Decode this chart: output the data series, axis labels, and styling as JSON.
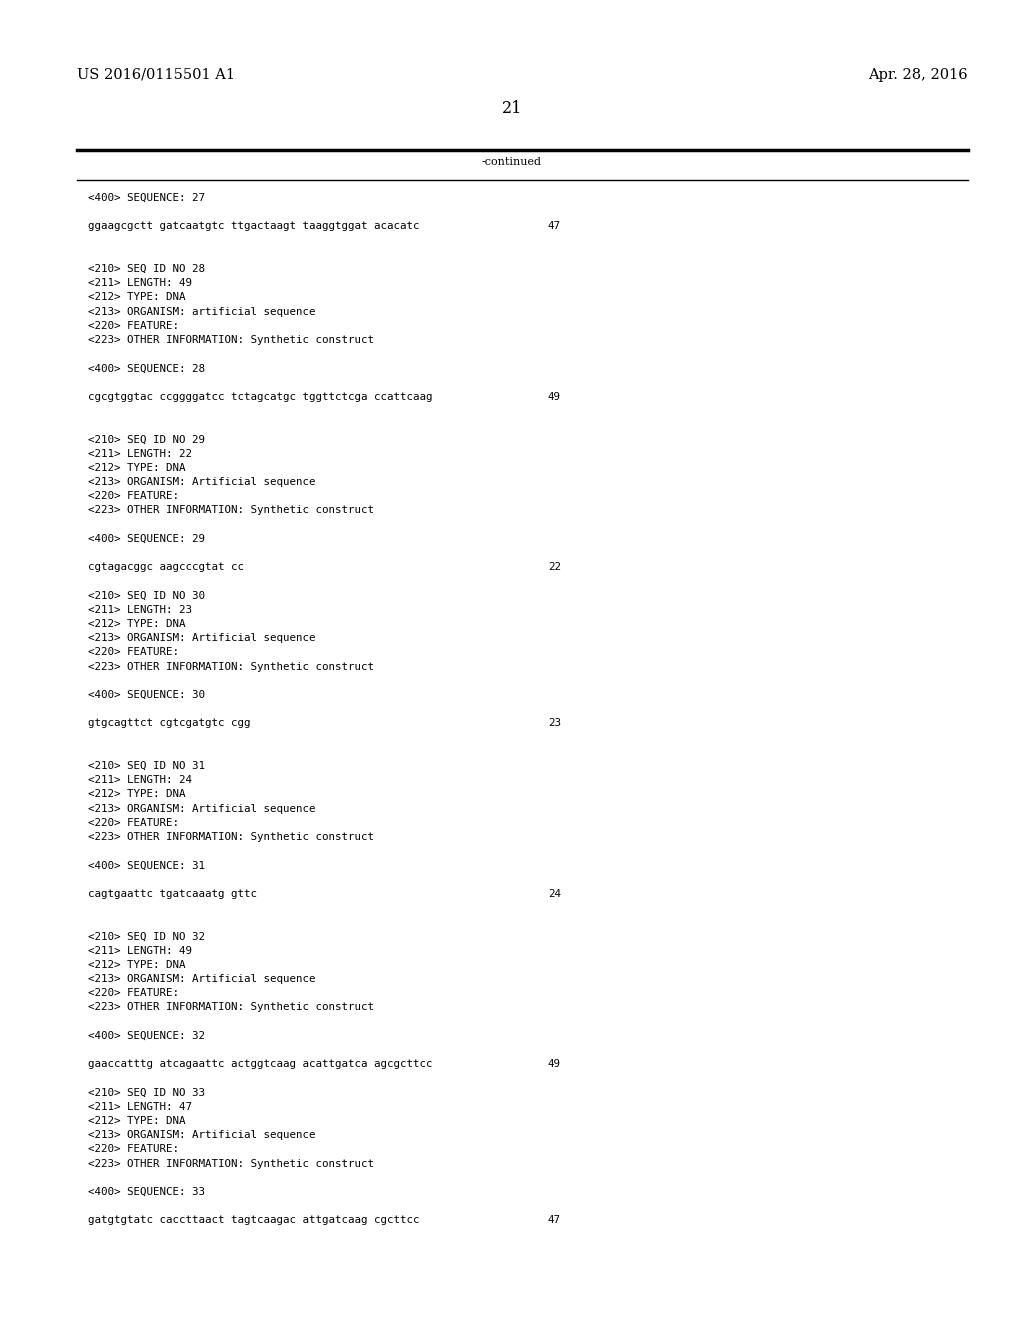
{
  "patent_number": "US 2016/0115501 A1",
  "date": "Apr. 28, 2016",
  "page_number": "21",
  "continued_label": "-continued",
  "background_color": "#ffffff",
  "text_color": "#000000",
  "header_font_size": 10.5,
  "body_font_size": 8.0,
  "mono_font_size": 7.8,
  "content_lines": [
    {
      "text": "<400> SEQUENCE: 27",
      "seq_num": null
    },
    {
      "text": "",
      "seq_num": null
    },
    {
      "text": "ggaagcgctt gatcaatgtc ttgactaagt taaggtggat acacatc",
      "seq_num": "47"
    },
    {
      "text": "",
      "seq_num": null
    },
    {
      "text": "",
      "seq_num": null
    },
    {
      "text": "<210> SEQ ID NO 28",
      "seq_num": null
    },
    {
      "text": "<211> LENGTH: 49",
      "seq_num": null
    },
    {
      "text": "<212> TYPE: DNA",
      "seq_num": null
    },
    {
      "text": "<213> ORGANISM: artificial sequence",
      "seq_num": null
    },
    {
      "text": "<220> FEATURE:",
      "seq_num": null
    },
    {
      "text": "<223> OTHER INFORMATION: Synthetic construct",
      "seq_num": null
    },
    {
      "text": "",
      "seq_num": null
    },
    {
      "text": "<400> SEQUENCE: 28",
      "seq_num": null
    },
    {
      "text": "",
      "seq_num": null
    },
    {
      "text": "cgcgtggtac ccggggatcc tctagcatgc tggttctcga ccattcaag",
      "seq_num": "49"
    },
    {
      "text": "",
      "seq_num": null
    },
    {
      "text": "",
      "seq_num": null
    },
    {
      "text": "<210> SEQ ID NO 29",
      "seq_num": null
    },
    {
      "text": "<211> LENGTH: 22",
      "seq_num": null
    },
    {
      "text": "<212> TYPE: DNA",
      "seq_num": null
    },
    {
      "text": "<213> ORGANISM: Artificial sequence",
      "seq_num": null
    },
    {
      "text": "<220> FEATURE:",
      "seq_num": null
    },
    {
      "text": "<223> OTHER INFORMATION: Synthetic construct",
      "seq_num": null
    },
    {
      "text": "",
      "seq_num": null
    },
    {
      "text": "<400> SEQUENCE: 29",
      "seq_num": null
    },
    {
      "text": "",
      "seq_num": null
    },
    {
      "text": "cgtagacggc aagcccgtat cc",
      "seq_num": "22"
    },
    {
      "text": "",
      "seq_num": null
    },
    {
      "text": "<210> SEQ ID NO 30",
      "seq_num": null
    },
    {
      "text": "<211> LENGTH: 23",
      "seq_num": null
    },
    {
      "text": "<212> TYPE: DNA",
      "seq_num": null
    },
    {
      "text": "<213> ORGANISM: Artificial sequence",
      "seq_num": null
    },
    {
      "text": "<220> FEATURE:",
      "seq_num": null
    },
    {
      "text": "<223> OTHER INFORMATION: Synthetic construct",
      "seq_num": null
    },
    {
      "text": "",
      "seq_num": null
    },
    {
      "text": "<400> SEQUENCE: 30",
      "seq_num": null
    },
    {
      "text": "",
      "seq_num": null
    },
    {
      "text": "gtgcagttct cgtcgatgtc cgg",
      "seq_num": "23"
    },
    {
      "text": "",
      "seq_num": null
    },
    {
      "text": "",
      "seq_num": null
    },
    {
      "text": "<210> SEQ ID NO 31",
      "seq_num": null
    },
    {
      "text": "<211> LENGTH: 24",
      "seq_num": null
    },
    {
      "text": "<212> TYPE: DNA",
      "seq_num": null
    },
    {
      "text": "<213> ORGANISM: Artificial sequence",
      "seq_num": null
    },
    {
      "text": "<220> FEATURE:",
      "seq_num": null
    },
    {
      "text": "<223> OTHER INFORMATION: Synthetic construct",
      "seq_num": null
    },
    {
      "text": "",
      "seq_num": null
    },
    {
      "text": "<400> SEQUENCE: 31",
      "seq_num": null
    },
    {
      "text": "",
      "seq_num": null
    },
    {
      "text": "cagtgaattc tgatcaaatg gttc",
      "seq_num": "24"
    },
    {
      "text": "",
      "seq_num": null
    },
    {
      "text": "",
      "seq_num": null
    },
    {
      "text": "<210> SEQ ID NO 32",
      "seq_num": null
    },
    {
      "text": "<211> LENGTH: 49",
      "seq_num": null
    },
    {
      "text": "<212> TYPE: DNA",
      "seq_num": null
    },
    {
      "text": "<213> ORGANISM: Artificial sequence",
      "seq_num": null
    },
    {
      "text": "<220> FEATURE:",
      "seq_num": null
    },
    {
      "text": "<223> OTHER INFORMATION: Synthetic construct",
      "seq_num": null
    },
    {
      "text": "",
      "seq_num": null
    },
    {
      "text": "<400> SEQUENCE: 32",
      "seq_num": null
    },
    {
      "text": "",
      "seq_num": null
    },
    {
      "text": "gaaccatttg atcagaattc actggtcaag acattgatca agcgcttcc",
      "seq_num": "49"
    },
    {
      "text": "",
      "seq_num": null
    },
    {
      "text": "<210> SEQ ID NO 33",
      "seq_num": null
    },
    {
      "text": "<211> LENGTH: 47",
      "seq_num": null
    },
    {
      "text": "<212> TYPE: DNA",
      "seq_num": null
    },
    {
      "text": "<213> ORGANISM: Artificial sequence",
      "seq_num": null
    },
    {
      "text": "<220> FEATURE:",
      "seq_num": null
    },
    {
      "text": "<223> OTHER INFORMATION: Synthetic construct",
      "seq_num": null
    },
    {
      "text": "",
      "seq_num": null
    },
    {
      "text": "<400> SEQUENCE: 33",
      "seq_num": null
    },
    {
      "text": "",
      "seq_num": null
    },
    {
      "text": "gatgtgtatc caccttaact tagtcaagac attgatcaag cgcttcc",
      "seq_num": "47"
    }
  ]
}
